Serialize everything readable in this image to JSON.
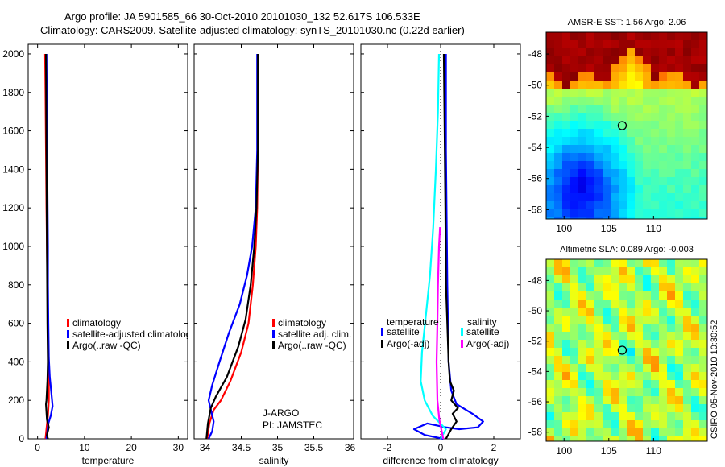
{
  "title": {
    "line1": "Argo profile: JA 5901585_66 30-Oct-2010 20101030_132 52.617S 106.533E",
    "line2": "Climatology: CARS2009. Satellite-adjusted climatology: synTS_20101030.nc (0.22d earlier)"
  },
  "credit": "CSIRO 05-Nov-2010 10:30:52",
  "colors": {
    "climatology": "#ff0000",
    "satellite": "#0000ff",
    "argo": "#000000",
    "sat_salinity": "#00ffff",
    "argo_salinity_adj": "#ff00ff"
  },
  "chart_data": [
    {
      "type": "line",
      "id": "temperature",
      "xlabel": "temperature",
      "xlim": [
        -2,
        32
      ],
      "ylim": [
        2050,
        0
      ],
      "xticks": [
        0,
        10,
        20,
        30
      ],
      "xtick_labels": [
        "0",
        "10",
        "20",
        "30"
      ],
      "yticks": [
        0,
        200,
        400,
        600,
        800,
        1000,
        1200,
        1400,
        1600,
        1800,
        2000
      ],
      "ytick_labels": [
        "0",
        "200",
        "400",
        "600",
        "800",
        "1000",
        "1200",
        "1400",
        "1600",
        "1800",
        "2000"
      ],
      "legend": [
        "climatology",
        "satellite-adjusted climatology",
        "Argo(..raw -QC)"
      ],
      "series": [
        {
          "name": "climatology",
          "color": "climatology",
          "x": [
            1.7,
            1.9,
            2.2,
            2.4,
            2.4,
            2.3,
            2.2,
            2.1,
            2.0,
            1.9,
            1.8,
            1.7,
            1.6
          ],
          "y": [
            0,
            50,
            120,
            200,
            300,
            420,
            600,
            800,
            1000,
            1200,
            1500,
            1800,
            2000
          ]
        },
        {
          "name": "satellite",
          "color": "satellite",
          "x": [
            1.9,
            2.1,
            2.3,
            2.8,
            3.2,
            2.9,
            2.6,
            2.4,
            2.3,
            2.2,
            2.2,
            2.1,
            2.0,
            1.9
          ],
          "y": [
            0,
            40,
            80,
            120,
            170,
            250,
            320,
            420,
            600,
            800,
            1000,
            1300,
            1600,
            2000
          ]
        },
        {
          "name": "Argo",
          "color": "argo",
          "x": [
            2.2,
            2.0,
            2.4,
            2.0,
            1.9,
            1.8,
            1.9,
            2.0,
            2.1,
            2.2,
            2.1,
            2.0,
            1.9,
            1.8
          ],
          "y": [
            0,
            20,
            60,
            100,
            140,
            180,
            200,
            250,
            300,
            400,
            600,
            1000,
            1500,
            2000
          ]
        }
      ]
    },
    {
      "type": "line",
      "id": "salinity",
      "xlabel": "salinity",
      "xlim": [
        33.85,
        36.05
      ],
      "ylim": [
        2050,
        0
      ],
      "xticks": [
        34,
        34.5,
        35,
        35.5,
        36
      ],
      "xtick_labels": [
        "34",
        "34.5",
        "35",
        "35.5",
        "36"
      ],
      "legend": [
        "climatology",
        "satellite adj. clim.",
        "Argo(..raw -QC)"
      ],
      "annotation": [
        "J-ARGO",
        "PI: JAMSTEC"
      ],
      "series": [
        {
          "name": "climatology",
          "color": "climatology",
          "x": [
            34.03,
            34.06,
            34.12,
            34.22,
            34.35,
            34.5,
            34.6,
            34.66,
            34.7,
            34.72,
            34.73,
            34.73,
            34.73
          ],
          "y": [
            0,
            80,
            150,
            200,
            300,
            450,
            600,
            800,
            1000,
            1200,
            1500,
            1800,
            2000
          ]
        },
        {
          "name": "satellite",
          "color": "satellite",
          "x": [
            34.05,
            34.1,
            34.12,
            34.05,
            34.1,
            34.2,
            34.33,
            34.48,
            34.58,
            34.65,
            34.7,
            34.72,
            34.72,
            34.72
          ],
          "y": [
            0,
            40,
            90,
            200,
            280,
            400,
            550,
            700,
            850,
            1000,
            1200,
            1500,
            1800,
            2000
          ]
        },
        {
          "name": "Argo",
          "color": "argo",
          "x": [
            34.02,
            34.04,
            34.08,
            34.15,
            34.3,
            34.46,
            34.56,
            34.63,
            34.68,
            34.71,
            34.73,
            34.73
          ],
          "y": [
            0,
            80,
            160,
            220,
            320,
            480,
            620,
            800,
            1000,
            1200,
            1500,
            2000
          ]
        }
      ]
    },
    {
      "type": "line",
      "id": "difference",
      "xlabel": "difference from climatology",
      "xlim": [
        -3,
        3
      ],
      "ylim": [
        2050,
        0
      ],
      "xticks": [
        -2,
        0,
        2
      ],
      "xtick_labels": [
        "-2",
        "0",
        "2"
      ],
      "legend_headers": [
        "temperature",
        "salinity"
      ],
      "legend_left": [
        "satellite",
        "Argo(-adj)"
      ],
      "legend_right": [
        "satellite",
        "Argo(-adj)"
      ],
      "series": [
        {
          "name": "temperature satellite",
          "color": "satellite",
          "x": [
            0.1,
            -0.6,
            -1.0,
            -0.5,
            0.2,
            0.7,
            1.4,
            1.6,
            1.2,
            0.6,
            0.4,
            0.3,
            0.25,
            0.2,
            0.2
          ],
          "y": [
            0,
            20,
            50,
            80,
            60,
            50,
            60,
            90,
            130,
            180,
            250,
            400,
            800,
            1500,
            2000
          ]
        },
        {
          "name": "temperature Argo",
          "color": "argo",
          "x": [
            0.2,
            0.4,
            0.6,
            0.45,
            0.65,
            0.4,
            0.5,
            0.35,
            0.3,
            0.25,
            0.2,
            0.18,
            0.15,
            0.12
          ],
          "y": [
            0,
            50,
            90,
            130,
            160,
            200,
            250,
            300,
            400,
            600,
            800,
            1200,
            1600,
            2000
          ]
        },
        {
          "name": "salinity satellite",
          "color": "sat_salinity",
          "x": [
            0.0,
            0.2,
            -0.3,
            -0.6,
            -0.75,
            -0.7,
            -0.55,
            -0.4,
            -0.28,
            -0.18,
            -0.1,
            -0.06
          ],
          "y": [
            0,
            50,
            120,
            200,
            300,
            450,
            650,
            850,
            1100,
            1400,
            1700,
            2000
          ]
        },
        {
          "name": "salinity Argo",
          "color": "argo_salinity_adj",
          "x": [
            0.1,
            -0.05,
            -0.12,
            -0.15,
            -0.12,
            -0.1,
            -0.06,
            -0.02
          ],
          "y": [
            0,
            100,
            200,
            400,
            600,
            800,
            1000,
            1100
          ]
        }
      ]
    },
    {
      "type": "heatmap",
      "id": "sst",
      "title": "AMSR-E SST: 1.56 Argo: 2.06",
      "xlim": [
        98,
        116
      ],
      "ylim": [
        -58.6,
        -46.6
      ],
      "xticks": [
        100,
        105,
        110
      ],
      "xtick_labels": [
        "100",
        "105",
        "110"
      ],
      "yticks": [
        -48,
        -50,
        -52,
        -54,
        -56,
        -58
      ],
      "ytick_labels": [
        "-48",
        "-50",
        "-52",
        "-54",
        "-56",
        "-58"
      ],
      "marker": [
        106.5,
        -52.6
      ]
    },
    {
      "type": "heatmap",
      "id": "sla",
      "title": "Altimetric SLA: 0.089 Argo: -0.003",
      "xlim": [
        98,
        116
      ],
      "ylim": [
        -58.6,
        -46.6
      ],
      "xticks": [
        100,
        105,
        110
      ],
      "xtick_labels": [
        "100",
        "105",
        "110"
      ],
      "yticks": [
        -48,
        -50,
        -52,
        -54,
        -56,
        -58
      ],
      "ytick_labels": [
        "-48",
        "-50",
        "-52",
        "-54",
        "-56",
        "-58"
      ],
      "marker": [
        106.5,
        -52.6
      ]
    }
  ]
}
